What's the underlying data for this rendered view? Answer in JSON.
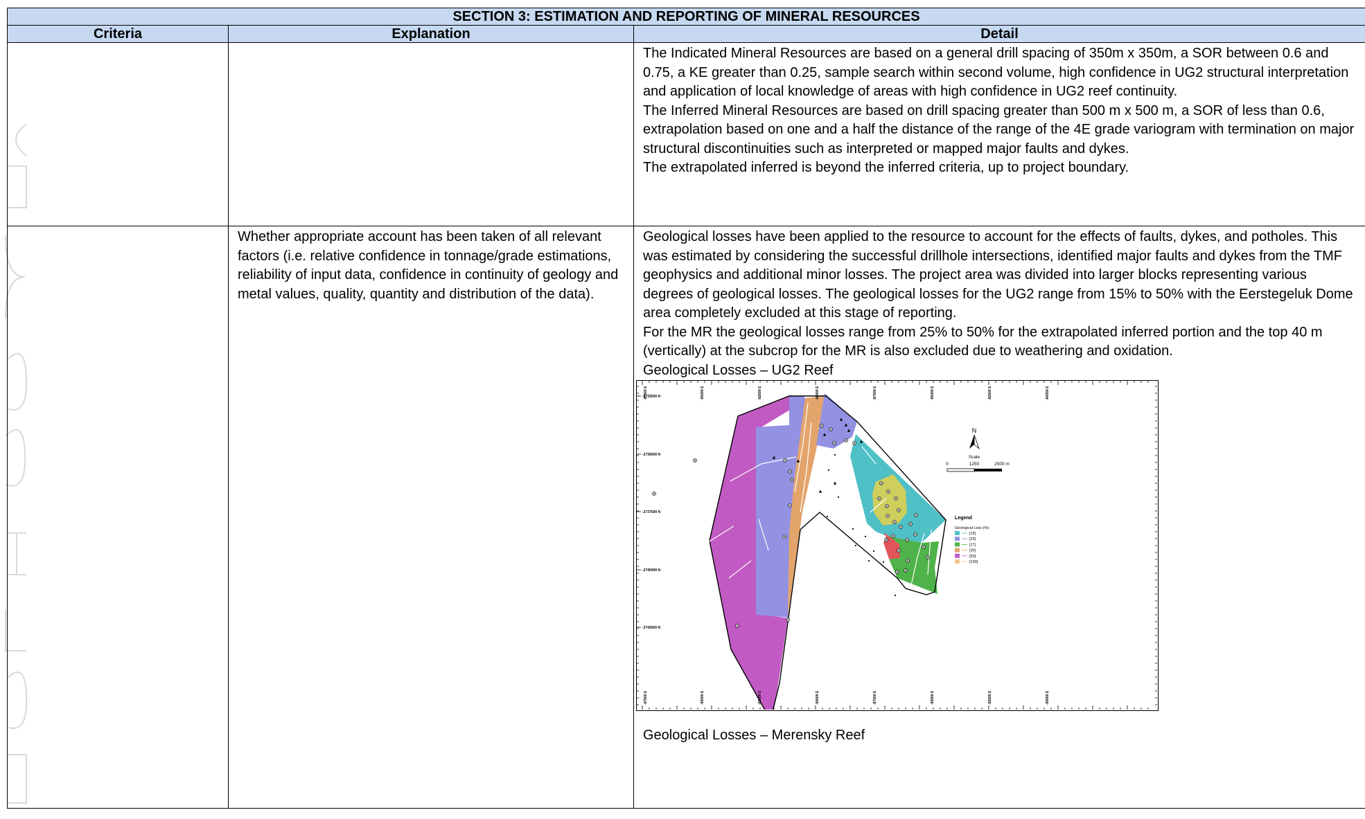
{
  "section_title": "SECTION 3: ESTIMATION AND REPORTING OF MINERAL RESOURCES",
  "columns": {
    "criteria": "Criteria",
    "explanation": "Explanation",
    "detail": "Detail"
  },
  "row1": {
    "criteria": "",
    "explanation": "",
    "detail": [
      "The Indicated Mineral Resources are based on a general drill spacing of 350m x 350m, a SOR between 0.6 and 0.75, a KE greater than 0.25, sample search within second volume, high confidence in UG2 structural interpretation and application of local knowledge of areas with high confidence in UG2 reef continuity.",
      "The Inferred Mineral Resources are based on drill spacing greater than 500 m x 500 m, a SOR of less than 0.6, extrapolation based on one and a half the distance of the range of the 4E grade variogram with termination on major structural discontinuities such as interpreted or mapped major faults and dykes.",
      "The extrapolated inferred is beyond the inferred criteria, up to project boundary."
    ]
  },
  "row2": {
    "criteria": "",
    "explanation": "Whether appropriate account has been taken of all relevant factors (i.e. relative confidence in tonnage/grade estimations, reliability of input data, confidence in continuity of geology and metal values, quality, quantity and distribution of the data).",
    "detail": [
      "Geological losses have been applied to the resource to account for the effects of faults, dykes, and potholes. This was estimated by considering the successful drillhole intersections, identified major faults and dykes from the TMF geophysics and additional minor losses. The project area was divided into larger blocks representing various degrees of geological losses. The geological losses for the UG2 range from 15% to 50% with the Eerstegeluk Dome area completely excluded at this stage of reporting.",
      "For the MR the geological losses range from 25% to 50% for the extrapolated inferred portion and the top 40 m (vertically) at the subcrop for the MR is also excluded due to weathering and oxidation."
    ],
    "figure1_caption": "Geological Losses – UG2 Reef",
    "figure2_caption": "Geological Losses – Merensky Reef"
  },
  "map": {
    "x_ticks": [
      "-97500 E",
      "-95000 E",
      "-92500 E",
      "-90000 E",
      "-87500 E",
      "-85000 E",
      "-82500 E",
      "-80000 E"
    ],
    "y_ticks": [
      "-2732500 N",
      "-2735000 N",
      "-2737500 N",
      "-2740000 N",
      "-2742500 N"
    ],
    "north_label": "N",
    "scale_title": "Scale",
    "scale_values": [
      "0",
      "1250",
      "2500 m"
    ],
    "legend_title": "Legend",
    "legend_subtitle": "Geological Loss (%)",
    "legend_items": [
      {
        "label": "[15]",
        "color": "#4fc0c6"
      },
      {
        "label": "[25]",
        "color": "#9391e2"
      },
      {
        "label": "[27]",
        "color": "#4fb24a"
      },
      {
        "label": "[36]",
        "color": "#e3a46b"
      },
      {
        "label": "[50]",
        "color": "#c15ac3"
      },
      {
        "label": "[100]",
        "color": "#f3c58e"
      }
    ],
    "zone_colors": {
      "magenta": "#c15ac3",
      "lavender": "#9391e2",
      "tan": "#e3a46b",
      "cyan": "#4fc0c6",
      "yellow": "#cfcf5e",
      "green": "#4fb24a",
      "red": "#e0555a"
    }
  }
}
